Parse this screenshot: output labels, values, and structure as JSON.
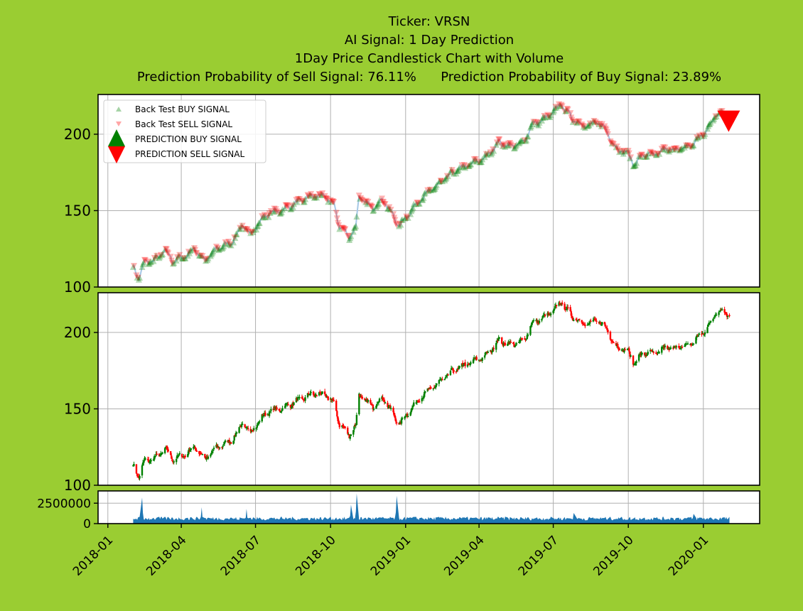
{
  "titles": [
    "Ticker: VRSN",
    "AI Signal: 1 Day Prediction",
    "1Day Price Candlestick Chart with Volume",
    "Prediction Probability of Sell Signal: 76.11%      Prediction Probability of Buy Signal: 23.89%"
  ],
  "colors": {
    "figure_bg": "#9acd32",
    "axes_bg": "#ffffff",
    "buy": "#008000",
    "sell": "#ff0000",
    "volume": "#1f77b4",
    "grid": "#b0b0b0",
    "price_line": "#a6c8e6"
  },
  "legend": {
    "position": "upper-left",
    "entries": [
      "Back Test BUY SIGNAL",
      "Back Test SELL SIGNAL",
      "PREDICTION BUY SIGNAL",
      "PREDICTION SELL SIGNAL"
    ]
  },
  "chart_data": {
    "type": "line",
    "ticker": "VRSN",
    "grid": true,
    "x_range": [
      "2017-12-20",
      "2020-03-10"
    ],
    "x_ticks": [
      "2018-01",
      "2018-04",
      "2018-07",
      "2018-10",
      "2019-01",
      "2019-04",
      "2019-07",
      "2019-10",
      "2020-01"
    ],
    "price_ylim": [
      100,
      226
    ],
    "price_yticks": [
      100,
      150,
      200
    ],
    "volume_ylim": [
      0,
      4000000
    ],
    "volume_yticks": [
      0,
      2500000
    ],
    "close_keypoints": [
      [
        "2018-02-01",
        113
      ],
      [
        "2018-02-08",
        106
      ],
      [
        "2018-02-15",
        116
      ],
      [
        "2018-03-01",
        118
      ],
      [
        "2018-03-12",
        124
      ],
      [
        "2018-03-22",
        117
      ],
      [
        "2018-04-05",
        120
      ],
      [
        "2018-04-18",
        125
      ],
      [
        "2018-04-30",
        117
      ],
      [
        "2018-05-15",
        125
      ],
      [
        "2018-06-01",
        129
      ],
      [
        "2018-06-15",
        140
      ],
      [
        "2018-06-25",
        135
      ],
      [
        "2018-07-15",
        148
      ],
      [
        "2018-08-01",
        150
      ],
      [
        "2018-08-20",
        155
      ],
      [
        "2018-09-10",
        160
      ],
      [
        "2018-09-25",
        159
      ],
      [
        "2018-10-05",
        154
      ],
      [
        "2018-10-12",
        140
      ],
      [
        "2018-10-24",
        133
      ],
      [
        "2018-11-01",
        139
      ],
      [
        "2018-11-05",
        160
      ],
      [
        "2018-11-12",
        155
      ],
      [
        "2018-11-22",
        152
      ],
      [
        "2018-12-05",
        157
      ],
      [
        "2018-12-15",
        148
      ],
      [
        "2018-12-24",
        140
      ],
      [
        "2019-01-05",
        148
      ],
      [
        "2019-01-20",
        158
      ],
      [
        "2019-02-10",
        167
      ],
      [
        "2019-02-28",
        175
      ],
      [
        "2019-03-20",
        180
      ],
      [
        "2019-04-10",
        185
      ],
      [
        "2019-04-25",
        195
      ],
      [
        "2019-05-10",
        192
      ],
      [
        "2019-05-25",
        194
      ],
      [
        "2019-06-05",
        206
      ],
      [
        "2019-06-20",
        210
      ],
      [
        "2019-07-01",
        214
      ],
      [
        "2019-07-10",
        220
      ],
      [
        "2019-07-25",
        210
      ],
      [
        "2019-08-10",
        205
      ],
      [
        "2019-08-25",
        208
      ],
      [
        "2019-09-05",
        202
      ],
      [
        "2019-09-15",
        191
      ],
      [
        "2019-09-30",
        188
      ],
      [
        "2019-10-08",
        180
      ],
      [
        "2019-10-20",
        187
      ],
      [
        "2019-11-01",
        186
      ],
      [
        "2019-11-15",
        190
      ],
      [
        "2019-12-01",
        190
      ],
      [
        "2019-12-15",
        192
      ],
      [
        "2020-01-05",
        202
      ],
      [
        "2020-01-15",
        212
      ],
      [
        "2020-01-25",
        215
      ],
      [
        "2020-02-02",
        211
      ]
    ],
    "volume_spikes": [
      [
        "2018-02-12",
        3200000
      ],
      [
        "2018-04-26",
        2000000
      ],
      [
        "2018-06-20",
        1800000
      ],
      [
        "2018-10-26",
        2300000
      ],
      [
        "2018-11-02",
        3700000
      ],
      [
        "2018-12-21",
        3400000
      ],
      [
        "2019-07-26",
        1300000
      ],
      [
        "2019-12-20",
        1200000
      ]
    ],
    "prediction_signal": {
      "date": "2020-02-01",
      "price": 209,
      "signal": "SELL"
    }
  }
}
